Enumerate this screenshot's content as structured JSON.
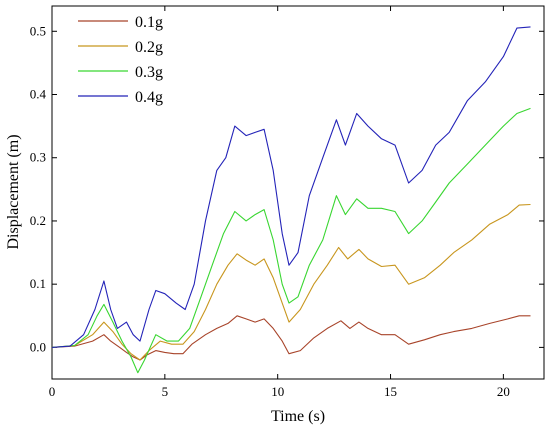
{
  "chart_data": {
    "type": "line",
    "xlabel": "Time (s)",
    "ylabel": "Displacement (m)",
    "xlim": [
      0,
      21.8
    ],
    "ylim": [
      -0.05,
      0.54
    ],
    "xticks": [
      0,
      5,
      10,
      15,
      20
    ],
    "yticks": [
      0.0,
      0.1,
      0.2,
      0.3,
      0.4,
      0.5
    ],
    "xtick_labels": [
      "0",
      "5",
      "10",
      "15",
      "20"
    ],
    "ytick_labels": [
      "0.0",
      "0.1",
      "0.2",
      "0.3",
      "0.4",
      "0.5"
    ],
    "grid": false,
    "legend_position": "top-left",
    "series": [
      {
        "name": "0.1g",
        "color": "#a8442a",
        "points": [
          [
            0,
            0
          ],
          [
            1.0,
            0.002
          ],
          [
            1.8,
            0.01
          ],
          [
            2.3,
            0.02
          ],
          [
            2.6,
            0.01
          ],
          [
            3.0,
            0.0
          ],
          [
            3.3,
            -0.008
          ],
          [
            3.6,
            -0.015
          ],
          [
            3.9,
            -0.02
          ],
          [
            4.2,
            -0.012
          ],
          [
            4.6,
            -0.005
          ],
          [
            5.0,
            -0.008
          ],
          [
            5.4,
            -0.01
          ],
          [
            5.8,
            -0.01
          ],
          [
            6.2,
            0.005
          ],
          [
            6.8,
            0.02
          ],
          [
            7.3,
            0.03
          ],
          [
            7.8,
            0.038
          ],
          [
            8.2,
            0.05
          ],
          [
            8.6,
            0.045
          ],
          [
            9.0,
            0.04
          ],
          [
            9.4,
            0.045
          ],
          [
            9.8,
            0.03
          ],
          [
            10.2,
            0.01
          ],
          [
            10.5,
            -0.01
          ],
          [
            11.0,
            -0.005
          ],
          [
            11.6,
            0.015
          ],
          [
            12.2,
            0.03
          ],
          [
            12.8,
            0.042
          ],
          [
            13.2,
            0.03
          ],
          [
            13.6,
            0.04
          ],
          [
            14.0,
            0.03
          ],
          [
            14.6,
            0.02
          ],
          [
            15.2,
            0.02
          ],
          [
            15.8,
            0.005
          ],
          [
            16.5,
            0.012
          ],
          [
            17.2,
            0.02
          ],
          [
            17.8,
            0.025
          ],
          [
            18.6,
            0.03
          ],
          [
            19.4,
            0.038
          ],
          [
            20.2,
            0.045
          ],
          [
            20.7,
            0.05
          ],
          [
            21.2,
            0.05
          ]
        ]
      },
      {
        "name": "0.2g",
        "color": "#c8961e",
        "points": [
          [
            0,
            0
          ],
          [
            1.0,
            0.003
          ],
          [
            1.8,
            0.02
          ],
          [
            2.3,
            0.04
          ],
          [
            2.7,
            0.025
          ],
          [
            3.1,
            0.005
          ],
          [
            3.5,
            -0.01
          ],
          [
            3.9,
            -0.02
          ],
          [
            4.3,
            -0.005
          ],
          [
            4.8,
            0.01
          ],
          [
            5.3,
            0.005
          ],
          [
            5.8,
            0.005
          ],
          [
            6.3,
            0.025
          ],
          [
            6.8,
            0.06
          ],
          [
            7.3,
            0.1
          ],
          [
            7.8,
            0.13
          ],
          [
            8.2,
            0.148
          ],
          [
            8.6,
            0.138
          ],
          [
            9.0,
            0.13
          ],
          [
            9.4,
            0.14
          ],
          [
            9.8,
            0.11
          ],
          [
            10.2,
            0.07
          ],
          [
            10.5,
            0.04
          ],
          [
            11.0,
            0.06
          ],
          [
            11.6,
            0.1
          ],
          [
            12.2,
            0.13
          ],
          [
            12.7,
            0.158
          ],
          [
            13.1,
            0.14
          ],
          [
            13.6,
            0.155
          ],
          [
            14.0,
            0.14
          ],
          [
            14.6,
            0.128
          ],
          [
            15.2,
            0.13
          ],
          [
            15.8,
            0.1
          ],
          [
            16.5,
            0.11
          ],
          [
            17.2,
            0.13
          ],
          [
            17.8,
            0.15
          ],
          [
            18.6,
            0.17
          ],
          [
            19.4,
            0.195
          ],
          [
            20.2,
            0.21
          ],
          [
            20.7,
            0.225
          ],
          [
            21.2,
            0.226
          ]
        ]
      },
      {
        "name": "0.3g",
        "color": "#39d631",
        "points": [
          [
            0,
            0
          ],
          [
            1.0,
            0.003
          ],
          [
            1.6,
            0.02
          ],
          [
            2.0,
            0.05
          ],
          [
            2.3,
            0.068
          ],
          [
            2.7,
            0.04
          ],
          [
            3.1,
            0.01
          ],
          [
            3.5,
            -0.015
          ],
          [
            3.8,
            -0.04
          ],
          [
            4.1,
            -0.02
          ],
          [
            4.6,
            0.02
          ],
          [
            5.1,
            0.01
          ],
          [
            5.6,
            0.01
          ],
          [
            6.1,
            0.03
          ],
          [
            6.6,
            0.08
          ],
          [
            7.1,
            0.13
          ],
          [
            7.6,
            0.18
          ],
          [
            8.1,
            0.215
          ],
          [
            8.6,
            0.2
          ],
          [
            9.0,
            0.21
          ],
          [
            9.4,
            0.218
          ],
          [
            9.8,
            0.17
          ],
          [
            10.2,
            0.1
          ],
          [
            10.5,
            0.07
          ],
          [
            10.9,
            0.08
          ],
          [
            11.4,
            0.13
          ],
          [
            12.0,
            0.17
          ],
          [
            12.6,
            0.24
          ],
          [
            13.0,
            0.21
          ],
          [
            13.5,
            0.235
          ],
          [
            14.0,
            0.22
          ],
          [
            14.6,
            0.22
          ],
          [
            15.2,
            0.215
          ],
          [
            15.8,
            0.18
          ],
          [
            16.4,
            0.2
          ],
          [
            17.0,
            0.23
          ],
          [
            17.6,
            0.26
          ],
          [
            18.4,
            0.29
          ],
          [
            19.2,
            0.32
          ],
          [
            20.0,
            0.35
          ],
          [
            20.6,
            0.37
          ],
          [
            21.2,
            0.378
          ]
        ]
      },
      {
        "name": "0.4g",
        "color": "#2323b8",
        "points": [
          [
            0,
            0
          ],
          [
            0.8,
            0.002
          ],
          [
            1.4,
            0.02
          ],
          [
            1.9,
            0.06
          ],
          [
            2.3,
            0.105
          ],
          [
            2.6,
            0.06
          ],
          [
            2.9,
            0.03
          ],
          [
            3.3,
            0.04
          ],
          [
            3.6,
            0.02
          ],
          [
            3.9,
            0.01
          ],
          [
            4.3,
            0.06
          ],
          [
            4.6,
            0.09
          ],
          [
            5.0,
            0.085
          ],
          [
            5.5,
            0.07
          ],
          [
            5.9,
            0.06
          ],
          [
            6.3,
            0.1
          ],
          [
            6.8,
            0.2
          ],
          [
            7.3,
            0.28
          ],
          [
            7.7,
            0.3
          ],
          [
            8.1,
            0.35
          ],
          [
            8.6,
            0.335
          ],
          [
            9.0,
            0.34
          ],
          [
            9.4,
            0.345
          ],
          [
            9.8,
            0.28
          ],
          [
            10.2,
            0.18
          ],
          [
            10.5,
            0.13
          ],
          [
            10.9,
            0.15
          ],
          [
            11.4,
            0.24
          ],
          [
            12.0,
            0.3
          ],
          [
            12.6,
            0.36
          ],
          [
            13.0,
            0.32
          ],
          [
            13.5,
            0.37
          ],
          [
            14.0,
            0.35
          ],
          [
            14.6,
            0.33
          ],
          [
            15.2,
            0.32
          ],
          [
            15.8,
            0.26
          ],
          [
            16.4,
            0.28
          ],
          [
            17.0,
            0.32
          ],
          [
            17.6,
            0.34
          ],
          [
            18.4,
            0.39
          ],
          [
            19.2,
            0.42
          ],
          [
            20.0,
            0.46
          ],
          [
            20.6,
            0.505
          ],
          [
            21.2,
            0.507
          ]
        ]
      }
    ]
  }
}
